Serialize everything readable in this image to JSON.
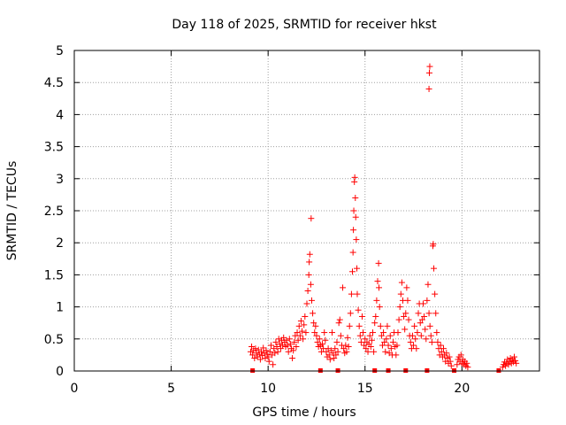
{
  "chart_data": {
    "type": "scatter",
    "title": "Day 118 of 2025, SRMTID for receiver hkst",
    "xlabel": "GPS time / hours",
    "ylabel": "SRMTID / TECUs",
    "xlim": [
      0,
      24
    ],
    "ylim": [
      0,
      5
    ],
    "x_ticks": [
      0,
      5,
      10,
      15,
      20
    ],
    "x_tick_labels": [
      "0",
      "5",
      "10",
      "15",
      "20"
    ],
    "y_ticks": [
      0,
      0.5,
      1,
      1.5,
      2,
      2.5,
      3,
      3.5,
      4,
      4.5,
      5
    ],
    "y_tick_labels": [
      "0",
      "0.5",
      "1",
      "1.5",
      "2",
      "2.5",
      "3",
      "3.5",
      "4",
      "4.5",
      "5"
    ],
    "grid": true,
    "legend": "none",
    "marker": "plus",
    "point_color": "#ff0000",
    "series": [
      {
        "points": [
          [
            9.1,
            0.3
          ],
          [
            9.15,
            0.38
          ],
          [
            9.2,
            0.25
          ],
          [
            9.25,
            0.32
          ],
          [
            9.3,
            0.2
          ],
          [
            9.35,
            0.35
          ],
          [
            9.4,
            0.28
          ],
          [
            9.45,
            0.22
          ],
          [
            9.5,
            0.33
          ],
          [
            9.55,
            0.26
          ],
          [
            9.6,
            0.18
          ],
          [
            9.65,
            0.3
          ],
          [
            9.7,
            0.24
          ],
          [
            9.75,
            0.36
          ],
          [
            9.8,
            0.28
          ],
          [
            9.85,
            0.2
          ],
          [
            9.9,
            0.32
          ],
          [
            9.95,
            0.26
          ],
          [
            10.0,
            0.22
          ],
          [
            10.05,
            0.15
          ],
          [
            10.1,
            0.3
          ],
          [
            10.15,
            0.4
          ],
          [
            10.2,
            0.25
          ],
          [
            10.25,
            0.1
          ],
          [
            10.3,
            0.35
          ],
          [
            10.35,
            0.28
          ],
          [
            10.4,
            0.45
          ],
          [
            10.45,
            0.38
          ],
          [
            10.5,
            0.3
          ],
          [
            10.55,
            0.5
          ],
          [
            10.6,
            0.42
          ],
          [
            10.65,
            0.35
          ],
          [
            10.7,
            0.48
          ],
          [
            10.75,
            0.4
          ],
          [
            10.8,
            0.52
          ],
          [
            10.85,
            0.45
          ],
          [
            10.9,
            0.38
          ],
          [
            10.95,
            0.48
          ],
          [
            11.0,
            0.4
          ],
          [
            11.05,
            0.3
          ],
          [
            11.1,
            0.5
          ],
          [
            11.15,
            0.42
          ],
          [
            11.2,
            0.35
          ],
          [
            11.25,
            0.2
          ],
          [
            11.3,
            0.32
          ],
          [
            11.35,
            0.45
          ],
          [
            11.4,
            0.55
          ],
          [
            11.45,
            0.38
          ],
          [
            11.5,
            0.6
          ],
          [
            11.55,
            0.48
          ],
          [
            11.6,
            0.7
          ],
          [
            11.65,
            0.55
          ],
          [
            11.7,
            0.78
          ],
          [
            11.75,
            0.62
          ],
          [
            11.8,
            0.5
          ],
          [
            11.85,
            0.72
          ],
          [
            11.9,
            0.85
          ],
          [
            11.95,
            0.6
          ],
          [
            12.0,
            1.05
          ],
          [
            12.05,
            1.25
          ],
          [
            12.1,
            1.5
          ],
          [
            12.12,
            1.7
          ],
          [
            12.15,
            1.82
          ],
          [
            12.2,
            1.35
          ],
          [
            12.25,
            1.1
          ],
          [
            12.22,
            2.38
          ],
          [
            12.3,
            0.9
          ],
          [
            12.35,
            0.75
          ],
          [
            12.4,
            0.6
          ],
          [
            12.45,
            0.7
          ],
          [
            12.5,
            0.55
          ],
          [
            12.55,
            0.45
          ],
          [
            12.6,
            0.38
          ],
          [
            12.65,
            0.5
          ],
          [
            12.7,
            0.4
          ],
          [
            12.75,
            0.3
          ],
          [
            12.8,
            0.42
          ],
          [
            12.85,
            0.35
          ],
          [
            12.9,
            0.6
          ],
          [
            12.95,
            0.48
          ],
          [
            13.0,
            0.3
          ],
          [
            13.05,
            0.22
          ],
          [
            13.1,
            0.35
          ],
          [
            13.15,
            0.25
          ],
          [
            13.2,
            0.18
          ],
          [
            13.25,
            0.32
          ],
          [
            13.3,
            0.6
          ],
          [
            13.35,
            0.28
          ],
          [
            13.4,
            0.2
          ],
          [
            13.45,
            0.35
          ],
          [
            13.5,
            0.25
          ],
          [
            13.55,
            0.45
          ],
          [
            13.6,
            0.3
          ],
          [
            13.65,
            0.75
          ],
          [
            13.7,
            0.8
          ],
          [
            13.75,
            0.55
          ],
          [
            13.8,
            0.4
          ],
          [
            13.85,
            1.3
          ],
          [
            13.9,
            0.35
          ],
          [
            13.95,
            0.28
          ],
          [
            14.0,
            0.4
          ],
          [
            14.05,
            0.3
          ],
          [
            14.1,
            0.52
          ],
          [
            14.15,
            0.38
          ],
          [
            14.2,
            0.7
          ],
          [
            14.25,
            0.9
          ],
          [
            14.3,
            1.2
          ],
          [
            14.35,
            1.55
          ],
          [
            14.38,
            1.85
          ],
          [
            14.4,
            2.2
          ],
          [
            14.42,
            2.5
          ],
          [
            14.45,
            2.95
          ],
          [
            14.47,
            3.02
          ],
          [
            14.5,
            2.7
          ],
          [
            14.52,
            2.4
          ],
          [
            14.55,
            2.05
          ],
          [
            14.58,
            1.6
          ],
          [
            14.6,
            1.2
          ],
          [
            14.65,
            0.95
          ],
          [
            14.7,
            0.7
          ],
          [
            14.75,
            0.55
          ],
          [
            14.8,
            0.45
          ],
          [
            14.85,
            0.85
          ],
          [
            14.9,
            0.6
          ],
          [
            14.95,
            0.4
          ],
          [
            15.0,
            0.5
          ],
          [
            15.05,
            0.35
          ],
          [
            15.1,
            0.45
          ],
          [
            15.15,
            0.3
          ],
          [
            15.2,
            0.42
          ],
          [
            15.25,
            0.55
          ],
          [
            15.3,
            0.38
          ],
          [
            15.35,
            0.48
          ],
          [
            15.4,
            0.6
          ],
          [
            15.45,
            0.3
          ],
          [
            15.5,
            0.75
          ],
          [
            15.55,
            0.85
          ],
          [
            15.6,
            1.1
          ],
          [
            15.65,
            1.4
          ],
          [
            15.7,
            1.68
          ],
          [
            15.72,
            1.3
          ],
          [
            15.75,
            1.0
          ],
          [
            15.8,
            0.7
          ],
          [
            15.85,
            0.55
          ],
          [
            15.9,
            0.4
          ],
          [
            15.95,
            0.6
          ],
          [
            16.0,
            0.45
          ],
          [
            16.05,
            0.3
          ],
          [
            16.1,
            0.5
          ],
          [
            16.15,
            0.7
          ],
          [
            16.2,
            0.4
          ],
          [
            16.25,
            0.28
          ],
          [
            16.3,
            0.55
          ],
          [
            16.35,
            0.35
          ],
          [
            16.4,
            0.25
          ],
          [
            16.45,
            0.45
          ],
          [
            16.5,
            0.6
          ],
          [
            16.55,
            0.38
          ],
          [
            16.6,
            0.25
          ],
          [
            16.65,
            0.4
          ],
          [
            16.7,
            0.6
          ],
          [
            16.75,
            0.8
          ],
          [
            16.8,
            1.0
          ],
          [
            16.85,
            1.2
          ],
          [
            16.9,
            1.38
          ],
          [
            16.95,
            1.1
          ],
          [
            17.0,
            0.85
          ],
          [
            17.05,
            0.65
          ],
          [
            17.1,
            0.9
          ],
          [
            17.15,
            1.3
          ],
          [
            17.2,
            1.1
          ],
          [
            17.25,
            0.8
          ],
          [
            17.3,
            0.55
          ],
          [
            17.35,
            0.45
          ],
          [
            17.4,
            0.35
          ],
          [
            17.45,
            0.55
          ],
          [
            17.5,
            0.4
          ],
          [
            17.55,
            0.7
          ],
          [
            17.6,
            0.5
          ],
          [
            17.65,
            0.35
          ],
          [
            17.7,
            0.6
          ],
          [
            17.75,
            0.9
          ],
          [
            17.8,
            1.05
          ],
          [
            17.85,
            0.75
          ],
          [
            17.9,
            0.55
          ],
          [
            17.95,
            0.8
          ],
          [
            18.0,
            1.05
          ],
          [
            18.05,
            0.85
          ],
          [
            18.1,
            0.65
          ],
          [
            18.15,
            0.5
          ],
          [
            18.2,
            1.1
          ],
          [
            18.25,
            1.35
          ],
          [
            18.3,
            0.9
          ],
          [
            18.35,
            0.7
          ],
          [
            18.4,
            0.55
          ],
          [
            18.45,
            0.45
          ],
          [
            18.3,
            4.4
          ],
          [
            18.32,
            4.65
          ],
          [
            18.34,
            4.75
          ],
          [
            18.5,
            1.95
          ],
          [
            18.52,
            1.98
          ],
          [
            18.55,
            1.6
          ],
          [
            18.6,
            1.2
          ],
          [
            18.65,
            0.9
          ],
          [
            18.7,
            0.6
          ],
          [
            18.75,
            0.45
          ],
          [
            18.8,
            0.35
          ],
          [
            18.85,
            0.25
          ],
          [
            18.9,
            0.4
          ],
          [
            18.95,
            0.3
          ],
          [
            19.0,
            0.22
          ],
          [
            19.05,
            0.35
          ],
          [
            19.1,
            0.25
          ],
          [
            19.15,
            0.15
          ],
          [
            19.2,
            0.28
          ],
          [
            19.25,
            0.2
          ],
          [
            19.3,
            0.12
          ],
          [
            19.35,
            0.22
          ],
          [
            19.4,
            0.15
          ],
          [
            19.45,
            0.08
          ],
          [
            19.75,
            0.1
          ],
          [
            19.8,
            0.18
          ],
          [
            19.85,
            0.22
          ],
          [
            19.9,
            0.15
          ],
          [
            19.95,
            0.25
          ],
          [
            20.0,
            0.12
          ],
          [
            20.05,
            0.18
          ],
          [
            20.1,
            0.1
          ],
          [
            20.15,
            0.15
          ],
          [
            20.2,
            0.08
          ],
          [
            20.25,
            0.12
          ],
          [
            20.3,
            0.06
          ],
          [
            22.1,
            0.06
          ],
          [
            22.15,
            0.1
          ],
          [
            22.2,
            0.14
          ],
          [
            22.25,
            0.08
          ],
          [
            22.3,
            0.12
          ],
          [
            22.35,
            0.18
          ],
          [
            22.4,
            0.1
          ],
          [
            22.45,
            0.15
          ],
          [
            22.5,
            0.2
          ],
          [
            22.55,
            0.12
          ],
          [
            22.6,
            0.18
          ],
          [
            22.65,
            0.14
          ],
          [
            22.7,
            0.22
          ],
          [
            22.75,
            0.16
          ],
          [
            22.8,
            0.12
          ]
        ]
      }
    ],
    "outages_at_zero": [
      9.2,
      12.7,
      13.6,
      15.5,
      16.2,
      17.1,
      18.2,
      19.6,
      21.9
    ]
  }
}
